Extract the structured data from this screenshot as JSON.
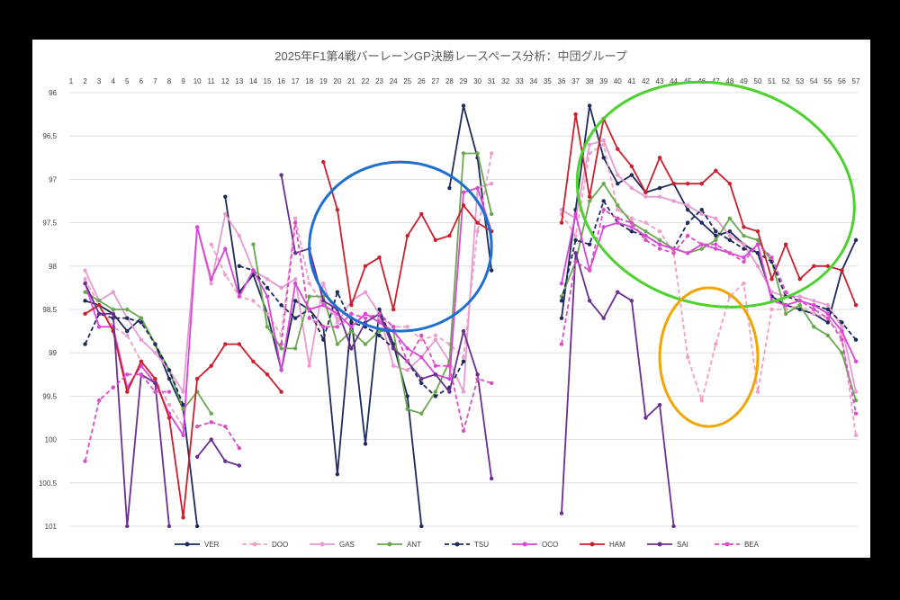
{
  "chart_data": {
    "type": "line",
    "title": "2025年F1第4戦バーレーンGP決勝レースペース分析：中団グループ",
    "x": [
      1,
      2,
      3,
      4,
      5,
      6,
      7,
      8,
      9,
      10,
      11,
      12,
      13,
      14,
      15,
      16,
      17,
      18,
      19,
      20,
      21,
      22,
      23,
      24,
      25,
      26,
      27,
      28,
      29,
      30,
      31,
      32,
      33,
      34,
      35,
      36,
      37,
      38,
      39,
      40,
      41,
      42,
      43,
      44,
      45,
      46,
      47,
      48,
      49,
      50,
      51,
      52,
      53,
      54,
      55,
      56,
      57
    ],
    "ylim": [
      96,
      101
    ],
    "y_inverted": true,
    "y_ticks": [
      "96",
      "96.5",
      "97",
      "97.5",
      "98",
      "98.5",
      "99",
      "99.5",
      "100",
      "100.5",
      "101"
    ],
    "grid": "horizontal",
    "legend_position": "bottom",
    "series": [
      {
        "name": "VER",
        "color": "#1f2a5c",
        "dash": "solid",
        "values": [
          null,
          98.4,
          98.45,
          98.55,
          98.75,
          98.6,
          98.9,
          99.3,
          99.65,
          101,
          null,
          97.2,
          98.3,
          98.1,
          98.55,
          99.2,
          98.4,
          98.5,
          98.7,
          100.4,
          98.6,
          100.05,
          98.5,
          98.9,
          99.5,
          101,
          null,
          97.1,
          96.15,
          96.75,
          98.05,
          null,
          null,
          null,
          null,
          98.6,
          97.35,
          96.15,
          96.75,
          97.05,
          96.95,
          97.15,
          97.1,
          97.05,
          97.35,
          97.5,
          97.65,
          97.6,
          97.75,
          97.85,
          98.35,
          98.45,
          98.5,
          98.55,
          98.65,
          98.05,
          97.7
        ]
      },
      {
        "name": "DOO",
        "color": "#f0a0c8",
        "dash": "5,3",
        "values": [
          null,
          98.15,
          98.45,
          98.7,
          98.8,
          99.1,
          99.3,
          99.6,
          99.85,
          null,
          97.75,
          98.1,
          98.35,
          98.4,
          98.55,
          98.8,
          97.45,
          98.2,
          98.45,
          98.6,
          98.7,
          98.55,
          98.6,
          98.7,
          98.7,
          98.85,
          98.8,
          98.9,
          99.05,
          97.6,
          96.7,
          null,
          null,
          null,
          null,
          97.4,
          97.65,
          96.7,
          96.6,
          97.35,
          97.45,
          97.5,
          97.6,
          97.85,
          99.05,
          99.55,
          98.9,
          98.35,
          98.2,
          99.45,
          98.5,
          98.5,
          98.45,
          98.55,
          98.6,
          98.8,
          99.95
        ]
      },
      {
        "name": "GAS",
        "color": "#e89ad2",
        "dash": "solid",
        "values": [
          null,
          98.05,
          98.4,
          98.3,
          98.6,
          98.85,
          99.0,
          99.2,
          99.45,
          97.55,
          98.2,
          97.4,
          97.65,
          98.05,
          98.15,
          98.25,
          98.15,
          99.15,
          98.2,
          98.65,
          98.4,
          98.3,
          98.55,
          99.15,
          99.2,
          99.05,
          98.85,
          99.1,
          99.45,
          97.1,
          97.05,
          null,
          null,
          null,
          null,
          97.35,
          97.45,
          96.6,
          96.55,
          96.95,
          97.1,
          97.2,
          97.2,
          97.25,
          97.3,
          97.4,
          97.45,
          97.65,
          97.75,
          98.0,
          98.3,
          98.35,
          98.35,
          98.4,
          98.45,
          98.7,
          99.45
        ]
      },
      {
        "name": "ANT",
        "color": "#6aa84f",
        "dash": "solid",
        "values": [
          null,
          98.3,
          98.4,
          98.5,
          98.5,
          98.6,
          98.9,
          99.2,
          99.65,
          99.45,
          99.7,
          null,
          null,
          97.75,
          98.7,
          98.95,
          98.95,
          98.35,
          98.35,
          98.9,
          98.75,
          98.9,
          98.75,
          98.75,
          99.65,
          99.7,
          99.45,
          99.1,
          96.7,
          96.7,
          97.4,
          null,
          null,
          null,
          null,
          98.35,
          97.95,
          97.25,
          97.05,
          97.3,
          97.5,
          97.6,
          97.7,
          97.8,
          97.85,
          97.8,
          97.7,
          97.45,
          97.65,
          97.7,
          97.95,
          98.55,
          98.45,
          98.7,
          98.8,
          99.0,
          99.55
        ]
      },
      {
        "name": "TSU",
        "color": "#1f2a5c",
        "dash": "5,3",
        "values": [
          null,
          98.9,
          98.55,
          98.6,
          98.6,
          98.65,
          98.9,
          99.2,
          99.6,
          null,
          null,
          null,
          98.0,
          98.05,
          98.25,
          98.45,
          98.6,
          98.5,
          98.85,
          98.3,
          98.65,
          98.7,
          98.8,
          98.95,
          99.1,
          99.35,
          99.5,
          99.4,
          99.1,
          null,
          null,
          null,
          null,
          null,
          null,
          98.4,
          97.7,
          97.75,
          97.25,
          97.5,
          97.6,
          97.65,
          97.75,
          97.8,
          97.5,
          97.35,
          97.6,
          97.7,
          97.8,
          97.85,
          97.95,
          98.35,
          98.4,
          98.45,
          98.5,
          98.65,
          98.85
        ]
      },
      {
        "name": "OCO",
        "color": "#d946d9",
        "dash": "solid",
        "values": [
          null,
          98.2,
          98.7,
          98.7,
          99.4,
          99.15,
          99.35,
          99.7,
          99.95,
          97.55,
          98.15,
          97.8,
          98.35,
          98.05,
          98.35,
          99.2,
          98.2,
          98.5,
          98.45,
          98.55,
          98.7,
          98.55,
          98.65,
          98.75,
          98.95,
          99.05,
          99.25,
          99.3,
          97.15,
          97.1,
          97.6,
          null,
          null,
          null,
          null,
          98.2,
          97.4,
          98.05,
          97.55,
          97.5,
          97.55,
          97.65,
          97.75,
          97.8,
          97.85,
          97.75,
          97.8,
          97.85,
          97.9,
          97.75,
          98.4,
          98.45,
          98.4,
          98.45,
          98.55,
          98.75,
          99.1
        ]
      },
      {
        "name": "HAM",
        "color": "#cc1f2e",
        "dash": "solid",
        "values": [
          null,
          98.55,
          98.45,
          98.75,
          99.45,
          99.1,
          99.3,
          99.75,
          100.9,
          99.3,
          99.15,
          98.9,
          98.9,
          99.1,
          99.25,
          99.45,
          null,
          null,
          96.8,
          97.35,
          98.45,
          98.0,
          97.9,
          98.5,
          97.65,
          97.4,
          97.7,
          97.65,
          97.3,
          97.5,
          97.6,
          null,
          null,
          null,
          null,
          97.5,
          96.25,
          97.2,
          96.3,
          96.65,
          96.85,
          97.15,
          96.75,
          97.05,
          97.05,
          97.05,
          96.9,
          97.05,
          97.55,
          97.6,
          98.15,
          97.75,
          98.15,
          98.0,
          98.0,
          98.05,
          98.45
        ]
      },
      {
        "name": "SAI",
        "color": "#6a2e8f",
        "dash": "solid",
        "values": [
          null,
          98.2,
          98.55,
          98.55,
          101,
          99.25,
          99.35,
          101,
          null,
          100.2,
          100.0,
          100.25,
          100.3,
          null,
          null,
          96.95,
          97.85,
          97.8,
          98.4,
          98.5,
          98.95,
          98.65,
          98.55,
          98.95,
          99.1,
          99.3,
          99.25,
          99.45,
          98.75,
          99.25,
          100.45,
          null,
          null,
          null,
          null,
          100.85,
          97.85,
          98.4,
          98.6,
          98.3,
          98.4,
          99.75,
          99.6,
          101,
          null,
          null,
          null,
          null,
          null,
          null,
          null,
          null,
          null,
          null,
          null,
          null,
          null
        ]
      },
      {
        "name": "BEA",
        "color": "#d94fc4",
        "dash": "5,3",
        "values": [
          null,
          100.25,
          99.55,
          99.4,
          99.25,
          99.25,
          99.45,
          99.45,
          null,
          99.85,
          99.8,
          99.85,
          100.1,
          null,
          null,
          98.9,
          97.5,
          98.6,
          98.7,
          98.7,
          98.55,
          98.6,
          98.55,
          98.7,
          99.1,
          98.8,
          99.15,
          99.15,
          99.9,
          99.3,
          99.35,
          null,
          null,
          null,
          null,
          98.9,
          97.95,
          98.05,
          97.35,
          97.45,
          97.5,
          97.7,
          97.8,
          97.85,
          97.65,
          97.75,
          97.75,
          97.85,
          97.95,
          97.75,
          97.9,
          98.3,
          98.4,
          98.5,
          98.6,
          98.85,
          99.7
        ]
      }
    ],
    "annotations": [
      {
        "shape": "ellipse",
        "color": "blue",
        "laps": [
          18,
          31
        ],
        "pace": [
          96.8,
          98.75
        ]
      },
      {
        "shape": "ellipse",
        "color": "green",
        "laps": [
          37,
          57
        ],
        "pace": [
          95.9,
          98.45
        ]
      },
      {
        "shape": "ellipse",
        "color": "orange",
        "laps": [
          43,
          50
        ],
        "pace": [
          98.25,
          99.85
        ]
      }
    ]
  }
}
